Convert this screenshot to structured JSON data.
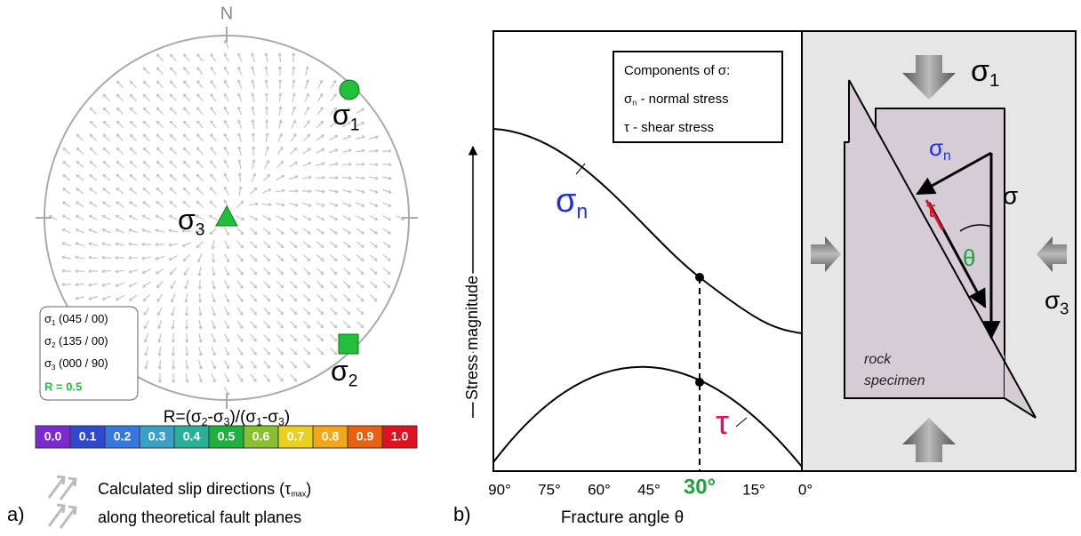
{
  "panel_a": {
    "label": "a)",
    "north": "N",
    "sigma1": [
      "σ",
      "1"
    ],
    "sigma2": [
      "σ",
      "2"
    ],
    "sigma3": [
      "σ",
      "3"
    ],
    "legend": [
      [
        "σ",
        "1",
        " (045 / 00)"
      ],
      [
        "σ",
        "2",
        " (135 / 00)"
      ],
      [
        "σ",
        "3",
        " (000 / 90)"
      ]
    ],
    "ratio": "R = 0.5",
    "scale_title": [
      "R=(σ",
      "2",
      "-σ",
      "3",
      ")/(σ",
      "1",
      "-σ",
      "3",
      ")"
    ],
    "scale_labels": [
      "0.0",
      "0.1",
      "0.2",
      "0.3",
      "0.4",
      "0.5",
      "0.6",
      "0.7",
      "0.8",
      "0.9",
      "1.0"
    ],
    "caption": [
      [
        "Calculated slip directions (τ",
        "max",
        ")"
      ],
      [
        "along theoretical fault planes"
      ]
    ]
  },
  "panel_b": {
    "label": "b)",
    "y_axis": "Stress magnitude",
    "x_axis": "Fracture angle θ",
    "x_ticks": [
      "90°",
      "75°",
      "60°",
      "45°",
      "30°",
      "15°",
      "0°"
    ],
    "legend_title": "Components of σ:",
    "legend": [
      [
        "σ",
        "n",
        " - normal stress"
      ],
      [
        "τ - shear stress"
      ]
    ],
    "curve_sigma_n": [
      "σ",
      "n"
    ],
    "curve_tau": "τ",
    "sigma1": [
      "σ",
      "1"
    ],
    "sigma3": [
      "σ",
      "3"
    ],
    "sigma_n": [
      "σ",
      "n"
    ],
    "tau": "τ",
    "sigma": "σ",
    "theta": "θ",
    "specimen": [
      "rock",
      "specimen"
    ]
  }
}
